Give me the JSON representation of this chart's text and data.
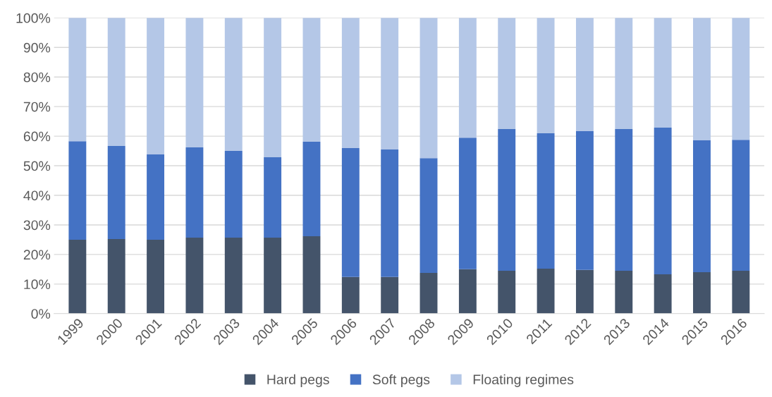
{
  "chart_data": {
    "type": "bar",
    "stacked": true,
    "categories": [
      "1999",
      "2000",
      "2001",
      "2002",
      "2003",
      "2004",
      "2005",
      "2006",
      "2007",
      "2008",
      "2009",
      "2010",
      "2011",
      "2012",
      "2013",
      "2014",
      "2015",
      "2016"
    ],
    "series": [
      {
        "name": "Hard pegs",
        "color": "#44546a",
        "values": [
          25,
          25.2,
          25,
          25.7,
          25.7,
          25.7,
          26.2,
          12.4,
          12.4,
          13.8,
          15,
          14.5,
          15.2,
          14.8,
          14.5,
          13.3,
          14,
          14.5
        ]
      },
      {
        "name": "Soft pegs",
        "color": "#4472c4",
        "values": [
          33.3,
          31.5,
          28.8,
          30.5,
          29.3,
          27.2,
          31.9,
          43.6,
          43.1,
          38.8,
          44.5,
          47.9,
          45.8,
          46.9,
          47.9,
          49.6,
          44.6,
          44.3
        ]
      },
      {
        "name": "Floating regimes",
        "color": "#b4c7e7",
        "values": [
          41.7,
          43.3,
          46.2,
          43.8,
          45,
          47.1,
          41.9,
          44,
          44.5,
          47.4,
          40.5,
          37.6,
          39,
          38.3,
          37.6,
          37.1,
          41.4,
          41.2
        ]
      }
    ],
    "ylim": [
      0,
      100
    ],
    "yticks": [
      {
        "value": 0,
        "label": "0%"
      },
      {
        "value": 10,
        "label": "10%"
      },
      {
        "value": 20,
        "label": "20%"
      },
      {
        "value": 30,
        "label": "30%"
      },
      {
        "value": 40,
        "label": "40%"
      },
      {
        "value": 50,
        "label": "50%"
      },
      {
        "value": 60,
        "label": "60%"
      },
      {
        "value": 70,
        "label": "70%"
      },
      {
        "value": 80,
        "label": "80%"
      },
      {
        "value": 90,
        "label": "90%"
      },
      {
        "value": 100,
        "label": "100%"
      }
    ],
    "grid": "y",
    "legend": "bottom"
  }
}
